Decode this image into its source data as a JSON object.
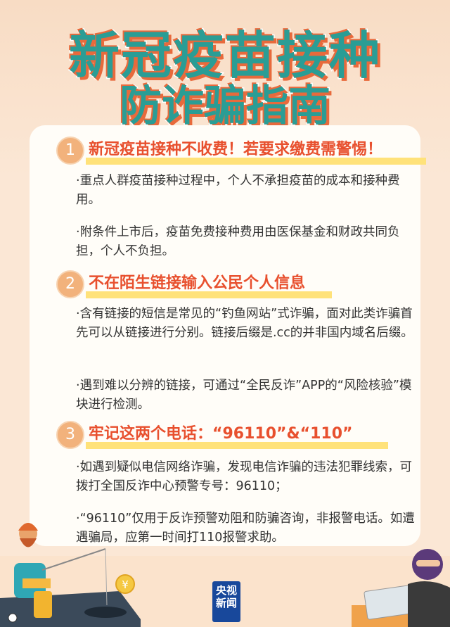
{
  "title": {
    "line1": "新冠疫苗接种",
    "line2": "防诈骗指南"
  },
  "sections": [
    {
      "number": "1",
      "heading": "新冠疫苗接种不收费！若要求缴费需警惕！",
      "paragraphs": [
        "·重点人群疫苗接种过程中，个人不承担疫苗的成本和接种费用。",
        "·附条件上市后，疫苗免费接种费用由医保基金和财政共同负担，个人不负担。"
      ]
    },
    {
      "number": "2",
      "heading": "不在陌生链接输入公民个人信息",
      "paragraphs": [
        "·含有链接的短信是常见的“钓鱼网站”式诈骗，面对此类诈骗首先可以从链接进行分别。链接后缀是.cc的并非国内域名后缀。",
        "·遇到难以分辨的链接，可通过“全民反诈”APP的“风险核验”模块进行检测。"
      ]
    },
    {
      "number": "3",
      "heading": "牢记这两个电话：“96110”&“110”",
      "paragraphs": [
        "·如遇到疑似电信网络诈骗，发现电信诈骗的违法犯罪线索，可拨打全国反诈中心预警专号：96110；",
        "·“96110”仅用于反诈预警劝阻和防骗咨询，非报警电话。如遭遇骗局，应第一时间打110报警求助。"
      ]
    }
  ],
  "logo": {
    "line1": "央视",
    "line2": "新闻"
  },
  "colors": {
    "title_fill": "#2a9d95",
    "title_shadow": "#e86a3c",
    "heading": "#e8502e",
    "highlight": "#ffe27a",
    "badge": "#f2b27c",
    "logo_bg": "#18489b"
  }
}
